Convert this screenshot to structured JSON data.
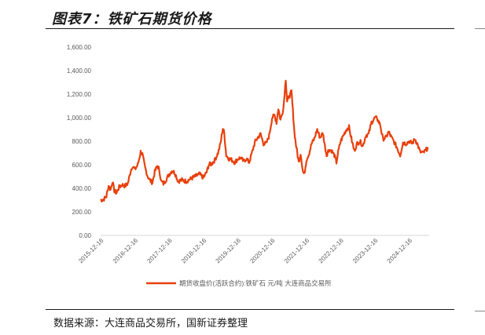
{
  "figure": {
    "title": "图表7：铁矿石期货价格",
    "source": "数据来源：大连商品交易所，国新证券整理"
  },
  "colors": {
    "series": "#e8400c",
    "axis": "#d9d9d9",
    "text": "#595959"
  },
  "chart_data": {
    "type": "line",
    "title": "",
    "xlabel": "",
    "ylabel": "",
    "ylim": [
      0,
      1600
    ],
    "y_ticks": [
      "0.00",
      "200.00",
      "400.00",
      "600.00",
      "800.00",
      "1,000.00",
      "1,200.00",
      "1,400.00",
      "1,600.00"
    ],
    "x_ticks": [
      "2015-12-16",
      "2016-12-16",
      "2017-12-16",
      "2018-12-16",
      "2019-12-16",
      "2020-12-16",
      "2021-12-16",
      "2022-12-16",
      "2023-12-16",
      "2024-12-16"
    ],
    "grid": false,
    "legend": "bottom",
    "series": [
      {
        "name": "期货收盘价(活跃合约):铁矿石 元/吨 大连商品交易所",
        "points": [
          [
            "2015-12-16",
            300
          ],
          [
            "2016-01-15",
            305
          ],
          [
            "2016-02-15",
            330
          ],
          [
            "2016-03-10",
            420
          ],
          [
            "2016-04-01",
            390
          ],
          [
            "2016-04-20",
            460
          ],
          [
            "2016-05-10",
            380
          ],
          [
            "2016-06-01",
            360
          ],
          [
            "2016-07-01",
            410
          ],
          [
            "2016-08-01",
            430
          ],
          [
            "2016-09-01",
            420
          ],
          [
            "2016-10-01",
            440
          ],
          [
            "2016-11-01",
            550
          ],
          [
            "2016-11-20",
            590
          ],
          [
            "2016-12-16",
            560
          ],
          [
            "2017-01-15",
            600
          ],
          [
            "2017-02-15",
            710
          ],
          [
            "2017-03-05",
            690
          ],
          [
            "2017-04-01",
            580
          ],
          [
            "2017-05-01",
            500
          ],
          [
            "2017-06-01",
            460
          ],
          [
            "2017-06-20",
            450
          ],
          [
            "2017-07-15",
            540
          ],
          [
            "2017-08-10",
            590
          ],
          [
            "2017-09-01",
            560
          ],
          [
            "2017-09-20",
            460
          ],
          [
            "2017-10-15",
            440
          ],
          [
            "2017-11-10",
            470
          ],
          [
            "2017-12-16",
            520
          ],
          [
            "2018-01-15",
            550
          ],
          [
            "2018-02-15",
            530
          ],
          [
            "2018-03-20",
            460
          ],
          [
            "2018-05-01",
            470
          ],
          [
            "2018-06-15",
            460
          ],
          [
            "2018-08-01",
            480
          ],
          [
            "2018-09-15",
            500
          ],
          [
            "2018-11-01",
            520
          ],
          [
            "2018-12-16",
            490
          ],
          [
            "2019-01-20",
            540
          ],
          [
            "2019-02-10",
            600
          ],
          [
            "2019-03-15",
            610
          ],
          [
            "2019-04-15",
            640
          ],
          [
            "2019-05-20",
            700
          ],
          [
            "2019-06-15",
            780
          ],
          [
            "2019-07-10",
            910
          ],
          [
            "2019-07-25",
            870
          ],
          [
            "2019-08-15",
            680
          ],
          [
            "2019-09-15",
            650
          ],
          [
            "2019-10-15",
            640
          ],
          [
            "2019-11-15",
            620
          ],
          [
            "2019-12-16",
            650
          ],
          [
            "2020-01-15",
            660
          ],
          [
            "2020-02-15",
            630
          ],
          [
            "2020-03-15",
            650
          ],
          [
            "2020-04-15",
            620
          ],
          [
            "2020-05-15",
            700
          ],
          [
            "2020-06-15",
            790
          ],
          [
            "2020-07-15",
            830
          ],
          [
            "2020-08-15",
            860
          ],
          [
            "2020-09-15",
            780
          ],
          [
            "2020-10-15",
            780
          ],
          [
            "2020-11-15",
            850
          ],
          [
            "2020-12-16",
            1000
          ],
          [
            "2021-01-10",
            1020
          ],
          [
            "2021-02-01",
            960
          ],
          [
            "2021-02-20",
            1080
          ],
          [
            "2021-03-15",
            980
          ],
          [
            "2021-04-15",
            1080
          ],
          [
            "2021-05-10",
            1330
          ],
          [
            "2021-05-25",
            1140
          ],
          [
            "2021-06-15",
            1180
          ],
          [
            "2021-07-10",
            1220
          ],
          [
            "2021-07-25",
            1060
          ],
          [
            "2021-08-10",
            880
          ],
          [
            "2021-08-25",
            780
          ],
          [
            "2021-09-10",
            700
          ],
          [
            "2021-09-25",
            620
          ],
          [
            "2021-10-15",
            700
          ],
          [
            "2021-11-10",
            540
          ],
          [
            "2021-11-25",
            520
          ],
          [
            "2021-12-16",
            640
          ],
          [
            "2022-01-15",
            700
          ],
          [
            "2022-02-10",
            780
          ],
          [
            "2022-03-10",
            820
          ],
          [
            "2022-04-10",
            900
          ],
          [
            "2022-05-10",
            830
          ],
          [
            "2022-06-10",
            870
          ],
          [
            "2022-07-01",
            760
          ],
          [
            "2022-07-20",
            680
          ],
          [
            "2022-08-10",
            730
          ],
          [
            "2022-09-10",
            720
          ],
          [
            "2022-10-10",
            680
          ],
          [
            "2022-11-01",
            620
          ],
          [
            "2022-11-20",
            710
          ],
          [
            "2022-12-16",
            800
          ],
          [
            "2023-01-15",
            850
          ],
          [
            "2023-02-15",
            900
          ],
          [
            "2023-03-15",
            920
          ],
          [
            "2023-04-15",
            800
          ],
          [
            "2023-05-10",
            720
          ],
          [
            "2023-06-10",
            780
          ],
          [
            "2023-07-10",
            800
          ],
          [
            "2023-08-10",
            760
          ],
          [
            "2023-09-10",
            850
          ],
          [
            "2023-10-10",
            860
          ],
          [
            "2023-11-10",
            960
          ],
          [
            "2023-12-16",
            1000
          ],
          [
            "2024-01-10",
            990
          ],
          [
            "2024-02-10",
            940
          ],
          [
            "2024-03-10",
            820
          ],
          [
            "2024-04-10",
            830
          ],
          [
            "2024-05-10",
            880
          ],
          [
            "2024-06-10",
            830
          ],
          [
            "2024-07-10",
            790
          ],
          [
            "2024-08-10",
            740
          ],
          [
            "2024-09-10",
            680
          ],
          [
            "2024-10-10",
            790
          ],
          [
            "2024-11-10",
            780
          ],
          [
            "2024-12-16",
            800
          ],
          [
            "2025-01-15",
            780
          ],
          [
            "2025-02-15",
            820
          ],
          [
            "2025-03-10",
            780
          ],
          [
            "2025-04-10",
            710
          ],
          [
            "2025-05-10",
            700
          ],
          [
            "2025-06-10",
            720
          ],
          [
            "2025-07-01",
            750
          ]
        ]
      }
    ]
  }
}
